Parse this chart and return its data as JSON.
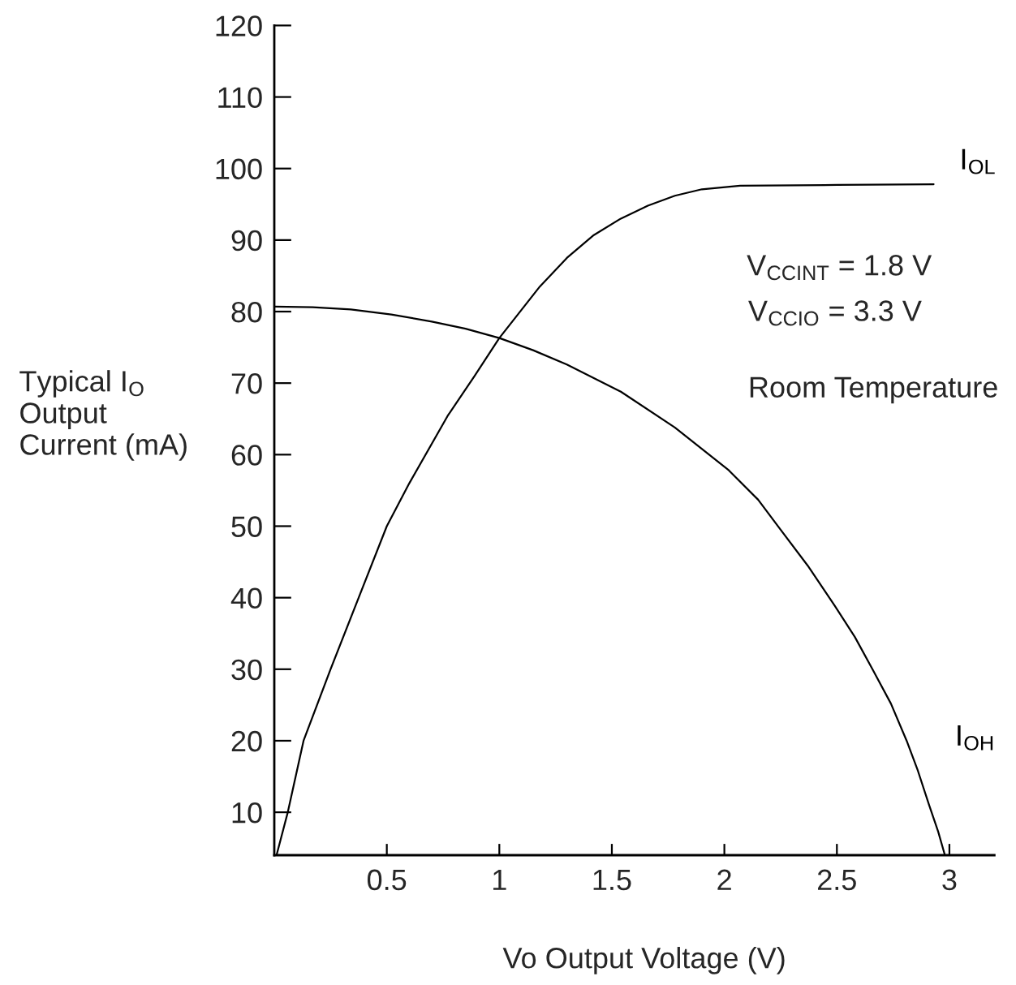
{
  "chart_data": {
    "type": "line",
    "xlabel": "Vo Output Voltage (V)",
    "ylabel": "Typical I$_{O}$\nOutput\nCurrent (mA)",
    "annotations": [
      "V$_{CCINT}$ = 1.8 V",
      "V$_{CCIO}$ = 3.3 V",
      "Room Temperature"
    ],
    "series": [
      {
        "name": "I$_{OL}$",
        "color": "#000000",
        "x": [
          0.01,
          0.06,
          0.13,
          0.25,
          0.375,
          0.5,
          0.6,
          0.77,
          0.89,
          1.0,
          1.18,
          1.3,
          1.42,
          1.54,
          1.66,
          1.78,
          1.9,
          2.07,
          2.5,
          2.93
        ],
        "values": [
          4,
          10,
          20,
          30,
          40,
          50,
          56,
          65.4,
          71,
          76.3,
          83.5,
          87.5,
          90.7,
          93,
          94.8,
          96.2,
          97.1,
          97.6,
          97.7,
          97.8
        ]
      },
      {
        "name": "I$_{OH}$",
        "color": "#000000",
        "x": [
          0,
          0.17,
          0.34,
          0.52,
          0.7,
          0.85,
          1.0,
          1.15,
          1.3,
          1.54,
          1.78,
          2.02,
          2.15,
          2.25,
          2.37,
          2.49,
          2.58,
          2.66,
          2.74,
          2.81,
          2.86,
          2.91,
          2.95,
          2.98
        ],
        "values": [
          80.7,
          80.6,
          80.3,
          79.6,
          78.6,
          77.6,
          76.3,
          74.6,
          72.6,
          68.8,
          63.8,
          57.8,
          53.7,
          49.5,
          44.5,
          38.9,
          34.5,
          29.9,
          25.2,
          20,
          15.8,
          11,
          7.3,
          4
        ]
      }
    ],
    "xlim": [
      0,
      3.2
    ],
    "ylim": [
      4,
      120
    ],
    "xticks": [
      0.5,
      1,
      1.5,
      2,
      2.5,
      3
    ],
    "yticks": [
      10,
      20,
      30,
      40,
      50,
      60,
      70,
      80,
      90,
      100,
      110,
      120
    ],
    "grid": false,
    "line_style": "solid"
  }
}
